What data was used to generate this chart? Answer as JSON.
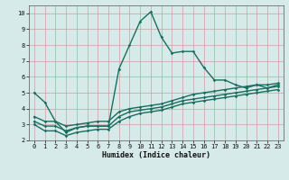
{
  "title": "",
  "xlabel": "Humidex (Indice chaleur)",
  "background_color": "#d6eaea",
  "grid_color": "#c8a0a0",
  "line_color": "#1a6e5e",
  "xlim": [
    -0.5,
    23.5
  ],
  "ylim": [
    2,
    10.5
  ],
  "yticks": [
    2,
    3,
    4,
    5,
    6,
    7,
    8,
    9,
    10
  ],
  "xticks": [
    0,
    1,
    2,
    3,
    4,
    5,
    6,
    7,
    8,
    9,
    10,
    11,
    12,
    13,
    14,
    15,
    16,
    17,
    18,
    19,
    20,
    21,
    22,
    23
  ],
  "series": [
    {
      "x": [
        0,
        1,
        2,
        3,
        4,
        5,
        6,
        7,
        8,
        9,
        10,
        11,
        12,
        13,
        14,
        15,
        16,
        17,
        18,
        19,
        20,
        21,
        22,
        23
      ],
      "y": [
        5.0,
        4.4,
        3.2,
        2.5,
        2.8,
        2.9,
        2.9,
        2.9,
        6.5,
        8.0,
        9.5,
        10.1,
        8.5,
        7.5,
        7.6,
        7.6,
        6.6,
        5.8,
        5.8,
        5.5,
        5.3,
        5.5,
        5.3,
        5.5
      ]
    },
    {
      "x": [
        0,
        1,
        2,
        3,
        4,
        5,
        6,
        7,
        8,
        9,
        10,
        11,
        12,
        13,
        14,
        15,
        16,
        17,
        18,
        19,
        20,
        21,
        22,
        23
      ],
      "y": [
        3.5,
        3.2,
        3.2,
        2.9,
        3.0,
        3.1,
        3.2,
        3.2,
        3.8,
        4.0,
        4.1,
        4.2,
        4.3,
        4.5,
        4.7,
        4.9,
        5.0,
        5.1,
        5.2,
        5.3,
        5.4,
        5.5,
        5.5,
        5.6
      ]
    },
    {
      "x": [
        0,
        1,
        2,
        3,
        4,
        5,
        6,
        7,
        8,
        9,
        10,
        11,
        12,
        13,
        14,
        15,
        16,
        17,
        18,
        19,
        20,
        21,
        22,
        23
      ],
      "y": [
        3.2,
        2.9,
        2.9,
        2.6,
        2.8,
        2.9,
        2.9,
        2.9,
        3.5,
        3.8,
        3.9,
        4.0,
        4.1,
        4.3,
        4.5,
        4.6,
        4.7,
        4.8,
        4.9,
        5.0,
        5.1,
        5.2,
        5.3,
        5.4
      ]
    },
    {
      "x": [
        0,
        1,
        2,
        3,
        4,
        5,
        6,
        7,
        8,
        9,
        10,
        11,
        12,
        13,
        14,
        15,
        16,
        17,
        18,
        19,
        20,
        21,
        22,
        23
      ],
      "y": [
        3.0,
        2.6,
        2.6,
        2.3,
        2.5,
        2.6,
        2.7,
        2.7,
        3.2,
        3.5,
        3.7,
        3.8,
        3.9,
        4.1,
        4.3,
        4.4,
        4.5,
        4.6,
        4.7,
        4.8,
        4.9,
        5.0,
        5.1,
        5.2
      ]
    }
  ]
}
